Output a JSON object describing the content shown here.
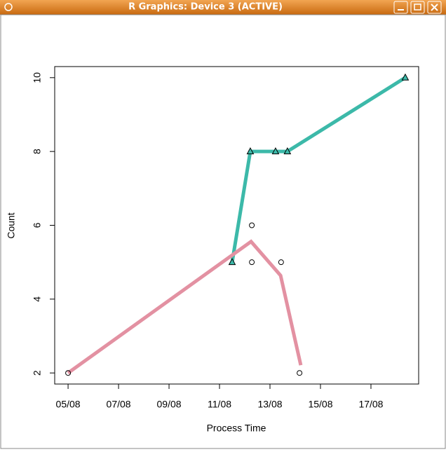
{
  "window": {
    "title": "R Graphics: Device 3 (ACTIVE)"
  },
  "chart_data": {
    "type": "line",
    "x_label": "Process Time",
    "y_label": "Count",
    "xlim": [
      4.47,
      18.89
    ],
    "ylim": [
      1.7,
      10.3
    ],
    "xticks": [
      {
        "value": 5,
        "label": "05/08"
      },
      {
        "value": 7,
        "label": "07/08"
      },
      {
        "value": 9,
        "label": "09/08"
      },
      {
        "value": 11,
        "label": "11/08"
      },
      {
        "value": 13,
        "label": "13/08"
      },
      {
        "value": 15,
        "label": "15/08"
      },
      {
        "value": 17,
        "label": "17/08"
      }
    ],
    "yticks": [
      2,
      4,
      6,
      8,
      10
    ],
    "series": [
      {
        "x": [
          11.5,
          12.22,
          13.22,
          13.69,
          18.36
        ],
        "values": [
          5,
          8,
          8,
          8,
          10
        ],
        "color": "#3cb9a9",
        "line": true,
        "marker": "triangle"
      },
      {
        "x": [
          5,
          12.25,
          13.42,
          14.22
        ],
        "values": [
          2,
          5.56,
          4.64,
          2.21
        ],
        "color": "#e391a2",
        "line": true,
        "marker": "none"
      },
      {
        "x": [
          5,
          12.28,
          12.28,
          13.44,
          14.17
        ],
        "values": [
          2,
          6,
          5,
          5,
          2
        ],
        "color": "#000000",
        "line": false,
        "marker": "circle"
      }
    ]
  }
}
